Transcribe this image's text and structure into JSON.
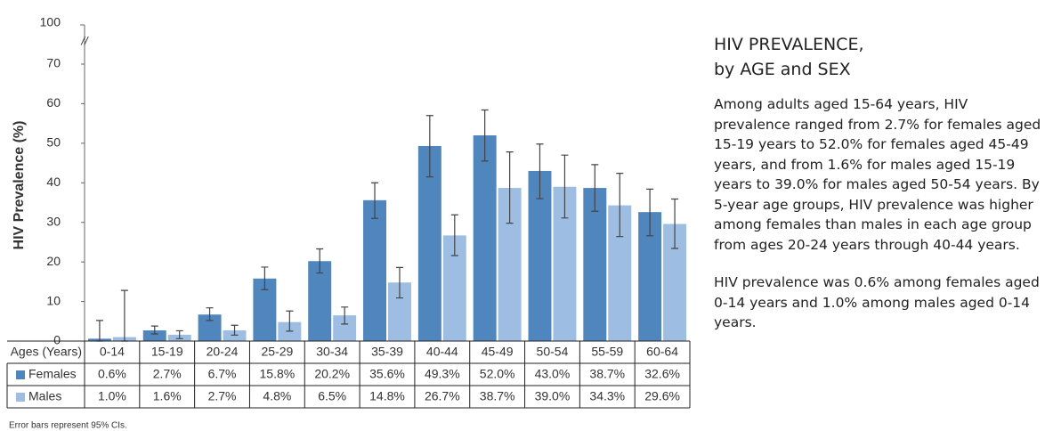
{
  "chart_data": {
    "type": "bar",
    "y_label": "HIV Prevalence (%)",
    "table_header_label": "Ages (Years)",
    "categories": [
      "0-14",
      "15-19",
      "20-24",
      "25-29",
      "30-34",
      "35-39",
      "40-44",
      "45-49",
      "50-54",
      "55-59",
      "60-64"
    ],
    "series": [
      {
        "name": "Females",
        "color": "#4f86bd",
        "values": [
          0.6,
          2.7,
          6.7,
          15.8,
          20.2,
          35.6,
          49.3,
          52.0,
          43.0,
          38.7,
          32.6
        ],
        "value_labels": [
          "0.6%",
          "2.7%",
          "6.7%",
          "15.8%",
          "20.2%",
          "35.6%",
          "49.3%",
          "52.0%",
          "43.0%",
          "38.7%",
          "32.6%"
        ],
        "ci_low": [
          0,
          1.8,
          5.2,
          13.0,
          17.2,
          31.0,
          41.5,
          45.5,
          36.0,
          32.8,
          26.6
        ],
        "ci_high": [
          5.2,
          3.8,
          8.4,
          18.7,
          23.3,
          40.0,
          57.0,
          58.4,
          49.8,
          44.6,
          38.4
        ]
      },
      {
        "name": "Males",
        "color": "#9dbde3",
        "values": [
          1.0,
          1.6,
          2.7,
          4.8,
          6.5,
          14.8,
          26.7,
          38.7,
          39.0,
          34.3,
          29.6
        ],
        "value_labels": [
          "1.0%",
          "1.6%",
          "2.7%",
          "4.8%",
          "6.5%",
          "14.8%",
          "26.7%",
          "38.7%",
          "39.0%",
          "34.3%",
          "29.6%"
        ],
        "ci_low": [
          0,
          0.6,
          1.5,
          2.5,
          4.3,
          10.9,
          21.6,
          29.8,
          31.1,
          26.4,
          23.4
        ],
        "ci_high": [
          12.8,
          2.6,
          4.0,
          7.6,
          8.6,
          18.6,
          31.9,
          47.8,
          47.0,
          42.4,
          35.9
        ]
      }
    ],
    "ylim": [
      0,
      70
    ],
    "yticks": [
      0,
      10,
      20,
      30,
      40,
      50,
      60,
      70
    ],
    "axis_break": {
      "top_tick": 100,
      "marker": "//"
    },
    "grid": false,
    "footnote": "Error bars represent 95% CIs."
  },
  "side_text": {
    "title_lines": [
      "HIV PREVALENCE,",
      "by AGE and SEX"
    ],
    "paragraphs": [
      "Among adults aged 15-64 years, HIV prevalence ranged from 2.7% for females aged 15-19 years to 52.0% for females aged 45-49 years, and from 1.6% for males aged 15-19 years to 39.0% for males aged 50-54 years. By 5-year age groups, HIV prevalence was higher among females than males in each age group from ages 20-24 years through 40-44 years.",
      "HIV prevalence was 0.6% among females aged 0-14 years and 1.0% among males aged 0-14 years."
    ]
  }
}
